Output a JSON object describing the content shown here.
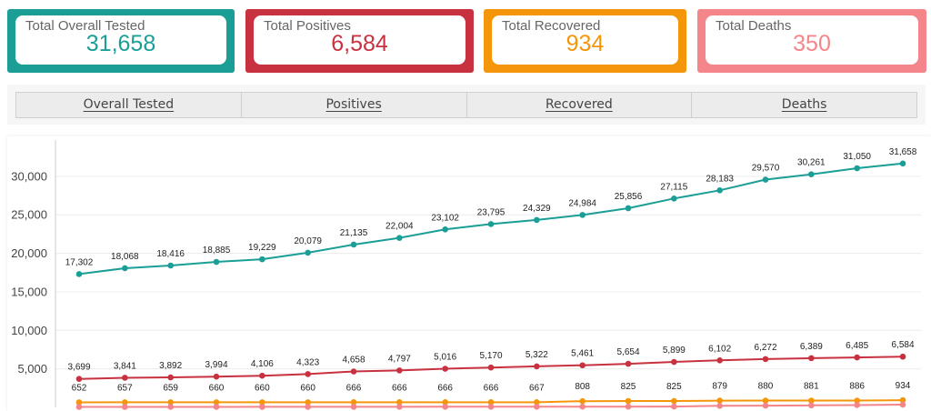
{
  "colors": {
    "tested": "#1a9e96",
    "positives": "#c8313f",
    "recovered": "#f5960a",
    "deaths": "#f4858a"
  },
  "cards": [
    {
      "label": "Total Overall Tested",
      "value": "31,658"
    },
    {
      "label": "Total Positives",
      "value": "6,584"
    },
    {
      "label": "Total Recovered",
      "value": "934"
    },
    {
      "label": "Total Deaths",
      "value": "350"
    }
  ],
  "tabs": [
    "Overall Tested",
    "Positives",
    "Recovered",
    "Deaths"
  ],
  "chart_data": {
    "type": "line",
    "title": "",
    "xlabel": "",
    "ylabel": "",
    "ylim": [
      0,
      34000
    ],
    "yticks": [
      5000,
      10000,
      15000,
      20000,
      25000,
      30000
    ],
    "ytick_labels": [
      "5,000",
      "10,000",
      "15,000",
      "20,000",
      "25,000",
      "30,000"
    ],
    "grid": true,
    "series": [
      {
        "key": "tested",
        "values": [
          17302,
          18068,
          18416,
          18885,
          19229,
          20079,
          21135,
          22004,
          23102,
          23795,
          24329,
          24984,
          25856,
          27115,
          28183,
          29570,
          30261,
          31050,
          31658
        ]
      },
      {
        "key": "positives",
        "values": [
          3699,
          3841,
          3892,
          3994,
          4106,
          4323,
          4658,
          4797,
          5016,
          5170,
          5322,
          5461,
          5654,
          5899,
          6102,
          6272,
          6389,
          6485,
          6584
        ]
      },
      {
        "key": "recovered",
        "values": [
          652,
          657,
          659,
          660,
          660,
          660,
          666,
          666,
          666,
          666,
          667,
          808,
          825,
          825,
          879,
          880,
          881,
          886,
          934
        ]
      },
      {
        "key": "deaths",
        "values": [
          60,
          60,
          62,
          64,
          66,
          68,
          72,
          76,
          80,
          84,
          88,
          92,
          100,
          110,
          200,
          230,
          260,
          300,
          350
        ]
      }
    ],
    "labeled_series": [
      "tested",
      "positives",
      "recovered"
    ]
  }
}
